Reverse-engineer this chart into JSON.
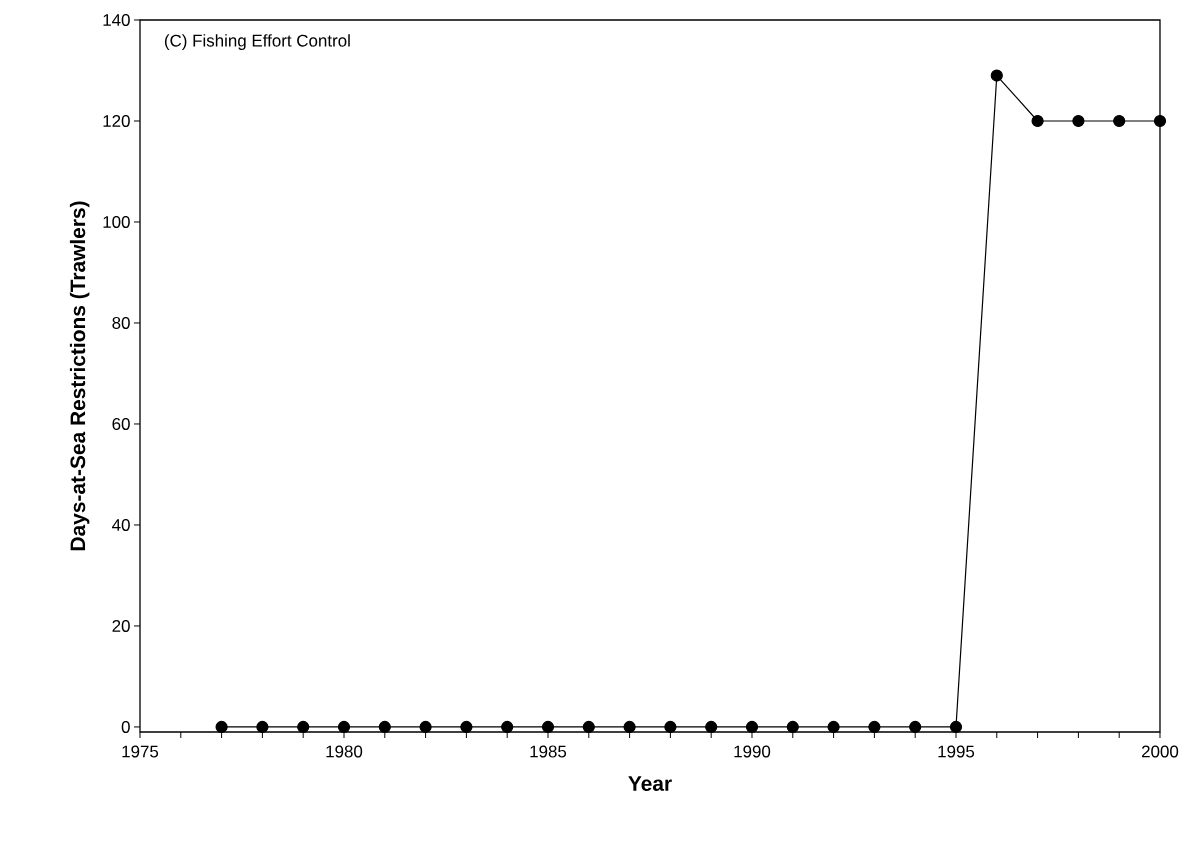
{
  "chart_data": {
    "type": "line",
    "title": "(C) Fishing Effort Control",
    "xlabel": "Year",
    "ylabel": "Days-at-Sea Restrictions (Trawlers)",
    "x": [
      1977,
      1978,
      1979,
      1980,
      1981,
      1982,
      1983,
      1984,
      1985,
      1986,
      1987,
      1988,
      1989,
      1990,
      1991,
      1992,
      1993,
      1994,
      1995,
      1996,
      1997,
      1998,
      1999,
      2000
    ],
    "series": [
      {
        "color": "#000000",
        "values": [
          0,
          0,
          0,
          0,
          0,
          0,
          0,
          0,
          0,
          0,
          0,
          0,
          0,
          0,
          0,
          0,
          0,
          0,
          0,
          129,
          120,
          120,
          120,
          120
        ]
      }
    ],
    "xlim": [
      1975,
      2000
    ],
    "ylim": [
      -1,
      140
    ],
    "xticks": [
      1975,
      {
        "value": 1976,
        "label": null
      },
      {
        "value": 1977,
        "label": null
      },
      {
        "value": 1978,
        "label": null
      },
      {
        "value": 1979,
        "label": null
      },
      1980,
      {
        "value": 1981,
        "label": null
      },
      {
        "value": 1982,
        "label": null
      },
      {
        "value": 1983,
        "label": null
      },
      {
        "value": 1984,
        "label": null
      },
      1985,
      {
        "value": 1986,
        "label": null
      },
      {
        "value": 1987,
        "label": null
      },
      {
        "value": 1988,
        "label": null
      },
      {
        "value": 1989,
        "label": null
      },
      1990,
      {
        "value": 1991,
        "label": null
      },
      {
        "value": 1992,
        "label": null
      },
      {
        "value": 1993,
        "label": null
      },
      {
        "value": 1994,
        "label": null
      },
      1995,
      {
        "value": 1996,
        "label": null
      },
      {
        "value": 1997,
        "label": null
      },
      {
        "value": 1998,
        "label": null
      },
      {
        "value": 1999,
        "label": null
      },
      2000
    ],
    "yticks": [
      0,
      20,
      40,
      60,
      80,
      100,
      120,
      140
    ],
    "grid": false,
    "marker": "circle",
    "line_style": "solid"
  }
}
